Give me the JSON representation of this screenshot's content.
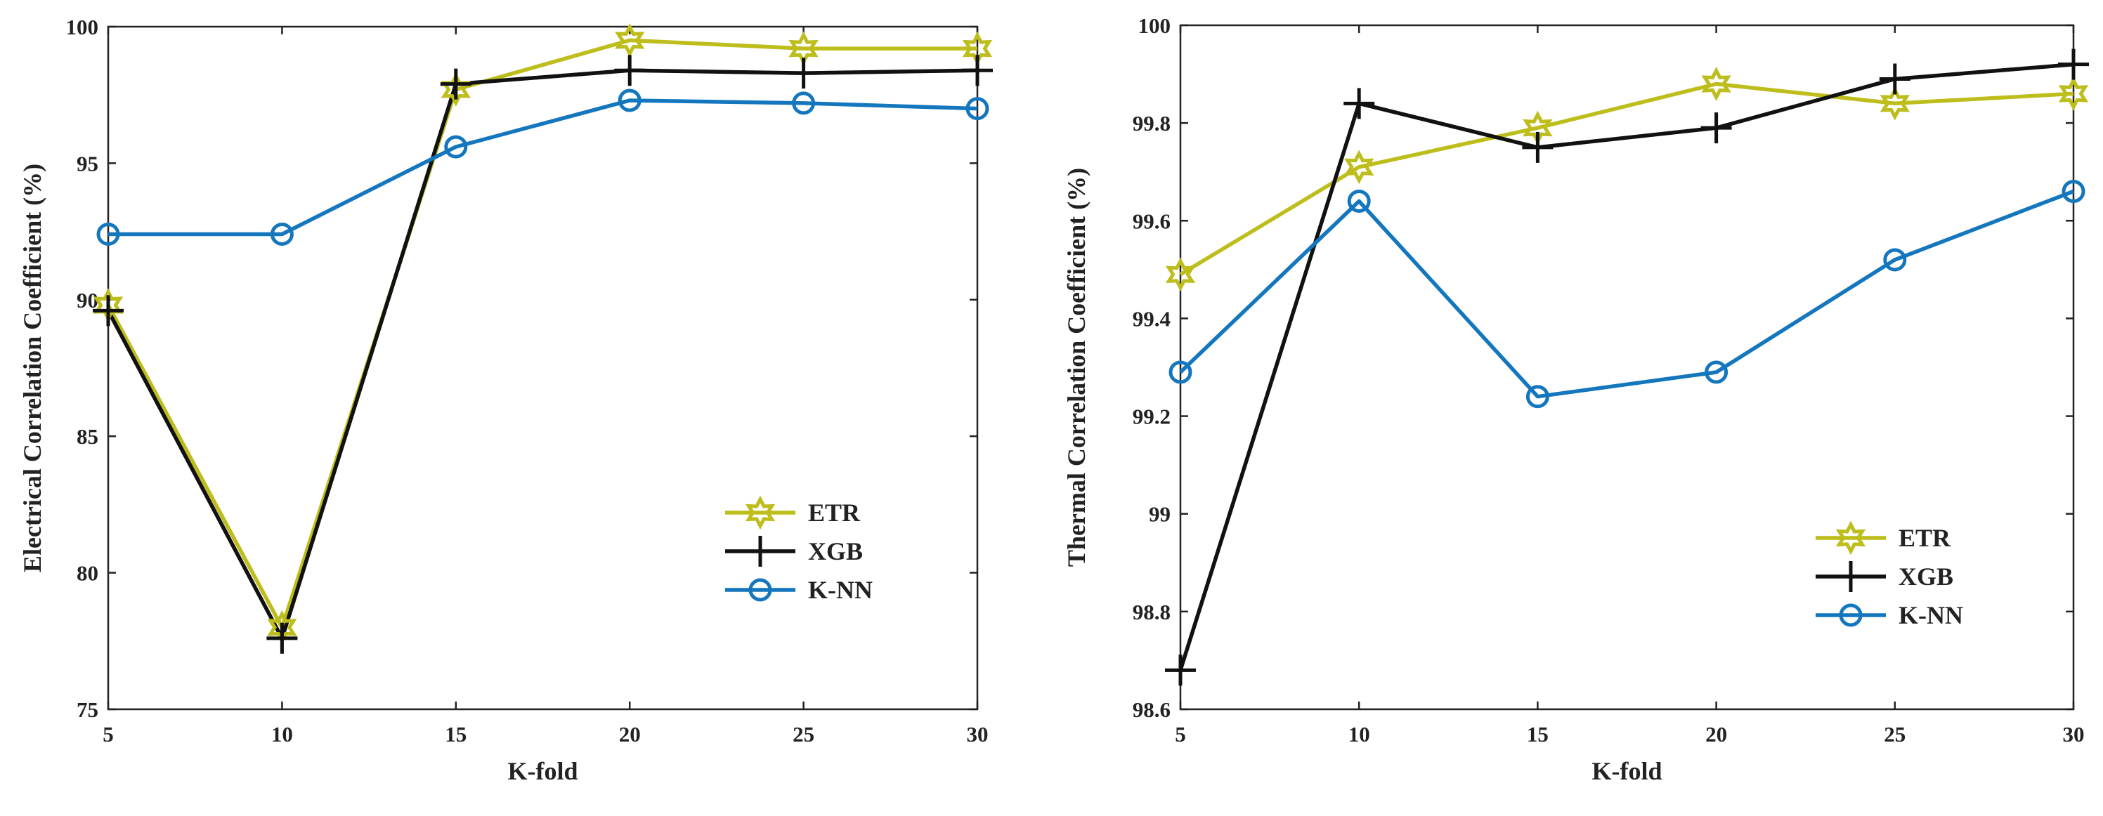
{
  "colors": {
    "ETR": "#BDBD1C",
    "XGB": "#111111",
    "K-NN": "#1477BE",
    "axis": "#222222"
  },
  "chart_data": [
    {
      "type": "line",
      "xlabel": "K-fold",
      "ylabel": "Electrical Correlation Coefficient (%)",
      "x": [
        5,
        10,
        15,
        20,
        25,
        30
      ],
      "xlim": [
        5,
        30
      ],
      "ylim": [
        75,
        100
      ],
      "xticks": [
        "5",
        "10",
        "15",
        "20",
        "25",
        "30"
      ],
      "yticks": [
        "75",
        "80",
        "85",
        "90",
        "95",
        "100"
      ],
      "yticks_values": [
        75,
        80,
        85,
        90,
        95,
        100
      ],
      "legend_position": "bottom-right",
      "series": [
        {
          "name": "ETR",
          "marker": "hexagram",
          "values": [
            89.8,
            78.0,
            97.7,
            99.5,
            99.2,
            99.2
          ]
        },
        {
          "name": "XGB",
          "marker": "plus",
          "values": [
            89.6,
            77.6,
            97.9,
            98.4,
            98.3,
            98.4
          ]
        },
        {
          "name": "K-NN",
          "marker": "circle",
          "values": [
            92.4,
            92.4,
            95.6,
            97.3,
            97.2,
            97.0
          ]
        }
      ]
    },
    {
      "type": "line",
      "xlabel": "K-fold",
      "ylabel": "Thermal Correlation Coefficient (%)",
      "x": [
        5,
        10,
        15,
        20,
        25,
        30
      ],
      "xlim": [
        5,
        30
      ],
      "ylim": [
        98.6,
        100
      ],
      "xticks": [
        "5",
        "10",
        "15",
        "20",
        "25",
        "30"
      ],
      "yticks": [
        "98.6",
        "98.8",
        "99",
        "99.2",
        "99.4",
        "99.6",
        "99.8",
        "100"
      ],
      "yticks_values": [
        98.6,
        98.8,
        99.0,
        99.2,
        99.4,
        99.6,
        99.8,
        100.0
      ],
      "legend_position": "bottom-right",
      "series": [
        {
          "name": "ETR",
          "marker": "hexagram",
          "values": [
            99.49,
            99.71,
            99.79,
            99.88,
            99.84,
            99.86
          ]
        },
        {
          "name": "XGB",
          "marker": "plus",
          "values": [
            98.68,
            99.84,
            99.75,
            99.79,
            99.89,
            99.92
          ]
        },
        {
          "name": "K-NN",
          "marker": "circle",
          "values": [
            99.29,
            99.64,
            99.24,
            99.29,
            99.52,
            99.66
          ]
        }
      ]
    }
  ]
}
